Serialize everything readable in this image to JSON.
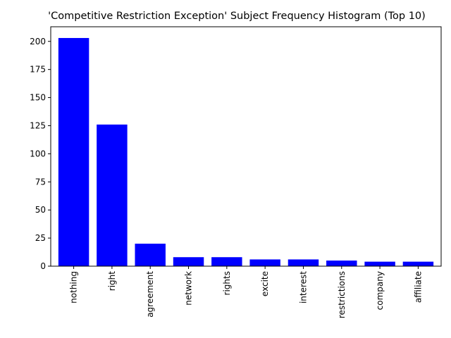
{
  "chart_data": {
    "type": "bar",
    "title": "'Competitive Restriction Exception' Subject Frequency Histogram (Top 10)",
    "xlabel": "",
    "ylabel": "",
    "categories": [
      "nothing",
      "right",
      "agreement",
      "network",
      "rights",
      "excite",
      "interest",
      "restrictions",
      "company",
      "affiliate"
    ],
    "values": [
      203,
      126,
      20,
      8,
      8,
      6,
      6,
      5,
      4,
      4
    ],
    "ylim": [
      0,
      213
    ],
    "yticks": [
      0,
      25,
      50,
      75,
      100,
      125,
      150,
      175,
      200
    ],
    "bar_color": "#0000ff",
    "grid": false,
    "legend": "none"
  }
}
